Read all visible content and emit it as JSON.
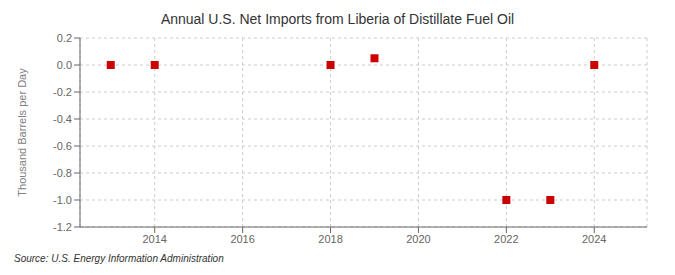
{
  "chart_data": {
    "type": "scatter",
    "title": "Annual U.S. Net Imports from Liberia of Distillate Fuel Oil",
    "ylabel": "Thousand Barrels per Day",
    "source": "Source: U.S. Energy Information Administration",
    "x": [
      2013,
      2014,
      2018,
      2019,
      2022,
      2023,
      2024
    ],
    "values": [
      0,
      0,
      0,
      0.05,
      -1,
      -1,
      0
    ],
    "color": "#cc0000",
    "marker": "square",
    "xlim": [
      2012.3,
      2025.2
    ],
    "ylim": [
      -1.2,
      0.2
    ],
    "xticks": [
      2014,
      2016,
      2018,
      2020,
      2022,
      2024
    ],
    "yticks": [
      0.2,
      {
        "value": 0,
        "label": "0.0"
      },
      -0.2,
      -0.4,
      -0.6,
      -0.8,
      {
        "value": -1,
        "label": "-1.0"
      },
      -1.2
    ],
    "grid": true
  }
}
